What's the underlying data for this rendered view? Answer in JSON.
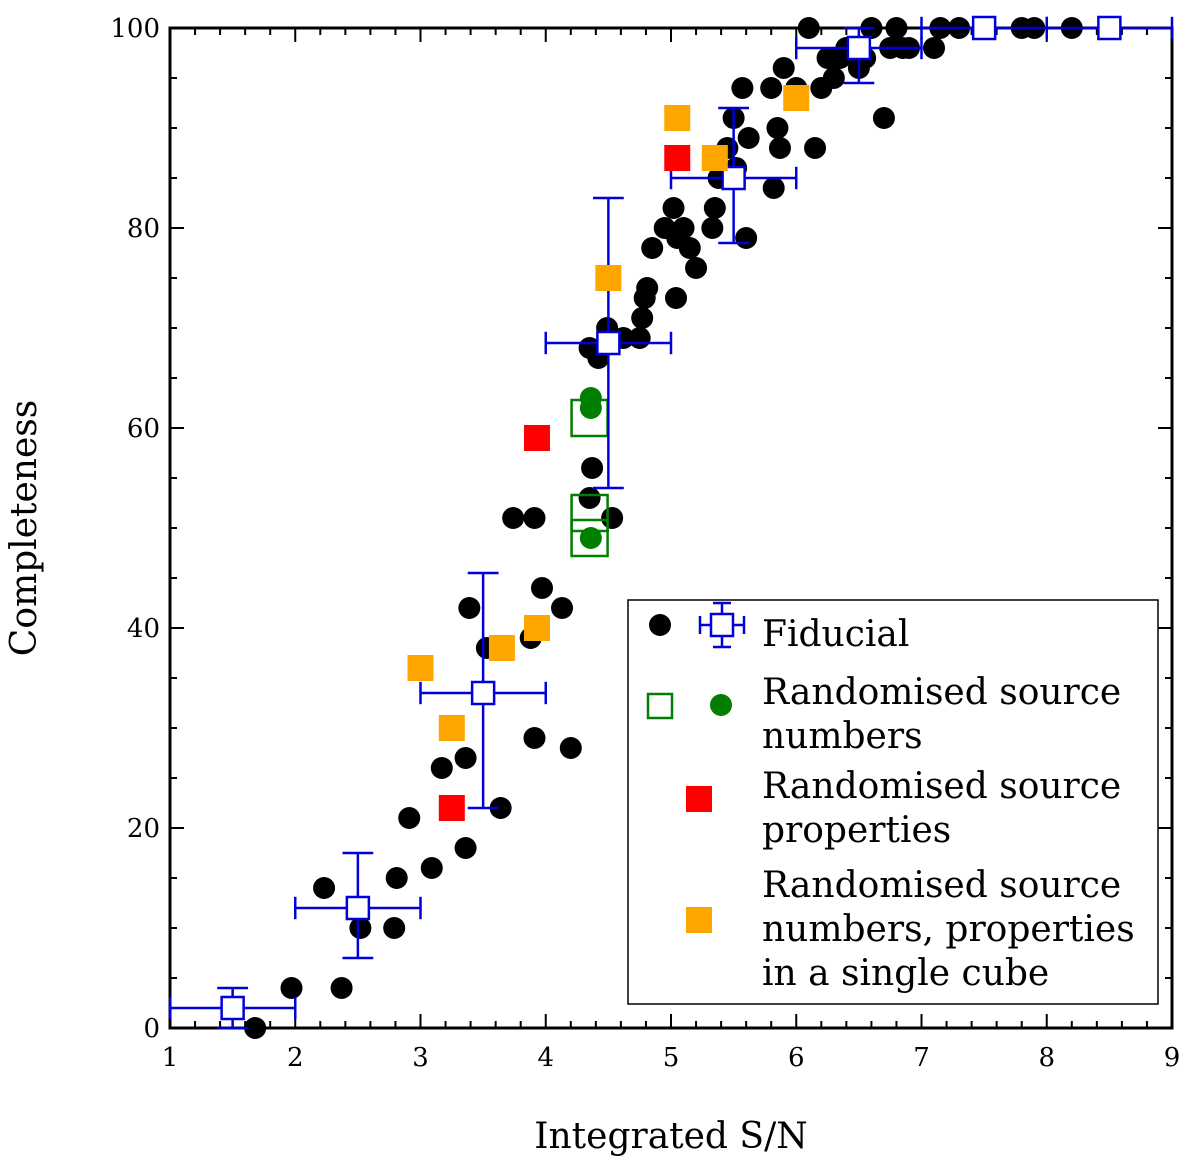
{
  "chart_data": {
    "type": "scatter",
    "title": "",
    "xlabel": "Integrated S/N",
    "ylabel": "Completeness",
    "xlim": [
      1,
      9
    ],
    "ylim": [
      0,
      100
    ],
    "xticks": [
      "1",
      "2",
      "3",
      "4",
      "5",
      "6",
      "7",
      "8",
      "9"
    ],
    "yticks": [
      "0",
      "20",
      "40",
      "60",
      "80",
      "100"
    ],
    "legend_position": "lower-right",
    "colors": {
      "fiducial_points": "#000000",
      "fiducial_binned": "#0000dd",
      "randomised_numbers": "#007f00",
      "randomised_properties": "#ff0000",
      "randomised_all": "#ffa500"
    },
    "series": [
      {
        "name": "Fiducial",
        "marker": "black-circle",
        "points": [
          [
            1.68,
            0
          ],
          [
            1.97,
            4
          ],
          [
            2.23,
            14
          ],
          [
            2.37,
            4
          ],
          [
            2.52,
            10
          ],
          [
            2.79,
            10
          ],
          [
            2.81,
            15
          ],
          [
            2.91,
            21
          ],
          [
            3.09,
            16
          ],
          [
            3.17,
            26
          ],
          [
            3.26,
            22
          ],
          [
            3.36,
            18
          ],
          [
            3.36,
            27
          ],
          [
            3.39,
            42
          ],
          [
            3.53,
            38
          ],
          [
            3.64,
            22
          ],
          [
            3.74,
            51
          ],
          [
            3.88,
            39
          ],
          [
            3.91,
            51
          ],
          [
            3.91,
            29
          ],
          [
            3.97,
            44
          ],
          [
            4.13,
            42
          ],
          [
            4.2,
            28
          ],
          [
            4.35,
            53
          ],
          [
            4.37,
            56
          ],
          [
            4.35,
            68
          ],
          [
            4.42,
            67
          ],
          [
            4.49,
            70
          ],
          [
            4.53,
            51
          ],
          [
            4.62,
            69
          ],
          [
            4.75,
            69
          ],
          [
            4.77,
            71
          ],
          [
            4.79,
            73
          ],
          [
            4.81,
            74
          ],
          [
            4.85,
            78
          ],
          [
            4.95,
            80
          ],
          [
            5.02,
            82
          ],
          [
            5.04,
            73
          ],
          [
            5.05,
            79
          ],
          [
            5.1,
            80
          ],
          [
            5.15,
            78
          ],
          [
            5.2,
            76
          ],
          [
            5.33,
            80
          ],
          [
            5.35,
            82
          ],
          [
            5.38,
            85
          ],
          [
            5.45,
            88
          ],
          [
            5.5,
            91
          ],
          [
            5.52,
            86
          ],
          [
            5.57,
            94
          ],
          [
            5.6,
            79
          ],
          [
            5.62,
            89
          ],
          [
            5.8,
            94
          ],
          [
            5.82,
            84
          ],
          [
            5.85,
            90
          ],
          [
            5.87,
            88
          ],
          [
            5.9,
            96
          ],
          [
            6.0,
            94
          ],
          [
            6.1,
            100
          ],
          [
            6.15,
            88
          ],
          [
            6.2,
            94
          ],
          [
            6.25,
            97
          ],
          [
            6.3,
            95
          ],
          [
            6.35,
            97
          ],
          [
            6.4,
            98
          ],
          [
            6.5,
            96
          ],
          [
            6.55,
            97
          ],
          [
            6.6,
            100
          ],
          [
            6.7,
            91
          ],
          [
            6.75,
            98
          ],
          [
            6.8,
            100
          ],
          [
            6.85,
            98
          ],
          [
            6.9,
            98
          ],
          [
            7.1,
            98
          ],
          [
            7.15,
            100
          ],
          [
            7.3,
            100
          ],
          [
            7.8,
            100
          ],
          [
            7.9,
            100
          ],
          [
            8.2,
            100
          ]
        ]
      },
      {
        "name": "Fiducial (binned)",
        "marker": "blue-open-square",
        "points": [
          {
            "x": 1.5,
            "y": 2,
            "xerr": 0.5,
            "ylo": 0,
            "yhi": 4
          },
          {
            "x": 2.5,
            "y": 12,
            "xerr": 0.5,
            "ylo": 7,
            "yhi": 17.5
          },
          {
            "x": 3.5,
            "y": 33.5,
            "xerr": 0.5,
            "ylo": 22,
            "yhi": 45.5
          },
          {
            "x": 4.5,
            "y": 68.5,
            "xerr": 0.5,
            "ylo": 54,
            "yhi": 83
          },
          {
            "x": 5.5,
            "y": 85,
            "xerr": 0.5,
            "ylo": 78.5,
            "yhi": 92
          },
          {
            "x": 6.5,
            "y": 98,
            "xerr": 0.5,
            "ylo": 94.5,
            "yhi": 100
          },
          {
            "x": 7.5,
            "y": 100,
            "xerr": 0.5,
            "ylo": 100,
            "yhi": 100
          },
          {
            "x": 8.5,
            "y": 100,
            "xerr": 0.5,
            "ylo": 100,
            "yhi": 100
          }
        ]
      },
      {
        "name": "Randomised source numbers",
        "marker": "green-open-square",
        "points": [
          [
            4.35,
            61
          ],
          [
            4.35,
            51.5
          ],
          [
            4.35,
            49
          ]
        ]
      },
      {
        "name": "Randomised source numbers (points)",
        "marker": "green-circle",
        "points": [
          [
            4.36,
            63
          ],
          [
            4.36,
            62
          ],
          [
            4.36,
            49
          ]
        ]
      },
      {
        "name": "Randomised source properties",
        "marker": "red-square",
        "points": [
          [
            3.25,
            22
          ],
          [
            3.93,
            59
          ],
          [
            5.05,
            87
          ]
        ]
      },
      {
        "name": "Randomised source numbers, properties in a single cube",
        "marker": "orange-square",
        "points": [
          [
            3.0,
            36
          ],
          [
            3.25,
            30
          ],
          [
            3.65,
            38
          ],
          [
            3.93,
            40
          ],
          [
            4.5,
            75
          ],
          [
            5.05,
            91
          ],
          [
            5.35,
            87
          ],
          [
            6.0,
            93
          ]
        ]
      }
    ],
    "legend": [
      {
        "lines": [
          "Fiducial"
        ],
        "markers": [
          "black-circle",
          "blue-open-square"
        ]
      },
      {
        "lines": [
          "Randomised source",
          "numbers"
        ],
        "markers": [
          "green-open-square",
          "green-circle"
        ]
      },
      {
        "lines": [
          "Randomised source",
          "properties"
        ],
        "markers": [
          "red-square"
        ]
      },
      {
        "lines": [
          "Randomised source",
          "numbers, properties",
          "in a single cube"
        ],
        "markers": [
          "orange-square"
        ]
      }
    ]
  }
}
